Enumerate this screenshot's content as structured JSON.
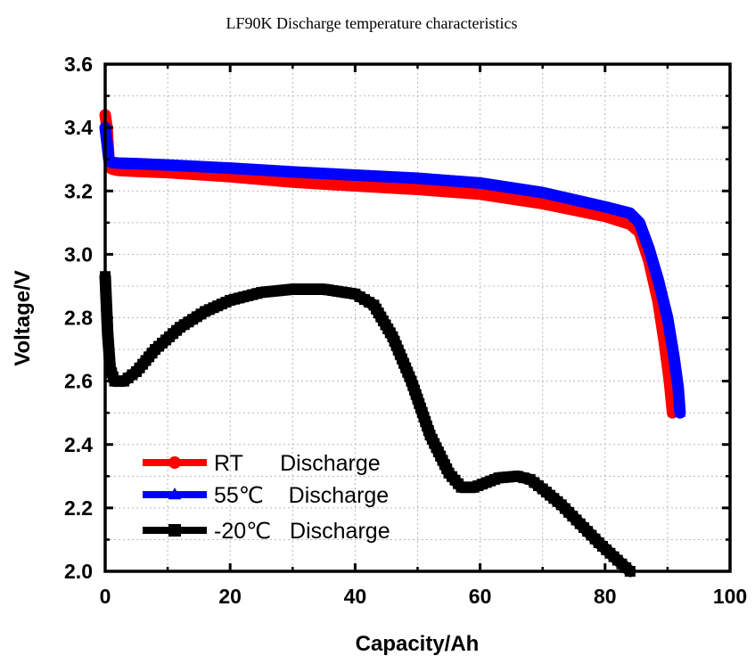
{
  "chart_data": {
    "type": "line",
    "title": "LF90K Discharge temperature characteristics",
    "xlabel": "Capacity/Ah",
    "ylabel": "Voltage/V",
    "xlim": [
      0,
      100
    ],
    "ylim": [
      2.0,
      3.6
    ],
    "xticks": [
      "0",
      "20",
      "40",
      "60",
      "80",
      "100"
    ],
    "yticks": [
      "2.0",
      "2.2",
      "2.4",
      "2.6",
      "2.8",
      "3.0",
      "3.2",
      "3.4",
      "3.6"
    ],
    "grid": true,
    "legend_position": "bottom-left",
    "series": [
      {
        "name": "RT      Discharge",
        "color": "#ff0000",
        "marker": "circle",
        "x": [
          0,
          0.3,
          0.6,
          1,
          2,
          5,
          10,
          20,
          30,
          40,
          50,
          60,
          70,
          80,
          84,
          85.5,
          87,
          88.5,
          89.5,
          90.3,
          90.8
        ],
        "y": [
          3.44,
          3.4,
          3.3,
          3.27,
          3.265,
          3.262,
          3.258,
          3.245,
          3.228,
          3.216,
          3.205,
          3.19,
          3.16,
          3.12,
          3.095,
          3.07,
          2.98,
          2.85,
          2.72,
          2.6,
          2.5
        ]
      },
      {
        "name": "55℃    Discharge",
        "color": "#0000ff",
        "marker": "triangle",
        "x": [
          0,
          0.3,
          0.6,
          1,
          2,
          5,
          10,
          20,
          30,
          40,
          50,
          60,
          70,
          80,
          84,
          85.5,
          87,
          88.5,
          90,
          91,
          91.7,
          92
        ],
        "y": [
          3.4,
          3.35,
          3.3,
          3.29,
          3.288,
          3.286,
          3.282,
          3.272,
          3.26,
          3.25,
          3.24,
          3.225,
          3.195,
          3.15,
          3.13,
          3.1,
          3.02,
          2.92,
          2.8,
          2.68,
          2.58,
          2.5
        ]
      },
      {
        "name": "-20℃   Discharge",
        "color": "#000000",
        "marker": "square",
        "x": [
          0,
          0.4,
          0.8,
          1.5,
          3,
          5,
          8,
          12,
          16,
          20,
          25,
          30,
          35,
          40,
          43,
          46,
          49,
          52,
          55,
          57,
          59,
          61,
          63,
          66,
          68,
          70,
          73,
          76,
          79,
          82,
          84
        ],
        "y": [
          2.93,
          2.75,
          2.64,
          2.6,
          2.6,
          2.63,
          2.7,
          2.77,
          2.82,
          2.855,
          2.88,
          2.89,
          2.89,
          2.875,
          2.84,
          2.74,
          2.6,
          2.43,
          2.31,
          2.265,
          2.265,
          2.28,
          2.295,
          2.3,
          2.29,
          2.26,
          2.21,
          2.15,
          2.09,
          2.035,
          2.0
        ]
      }
    ]
  }
}
